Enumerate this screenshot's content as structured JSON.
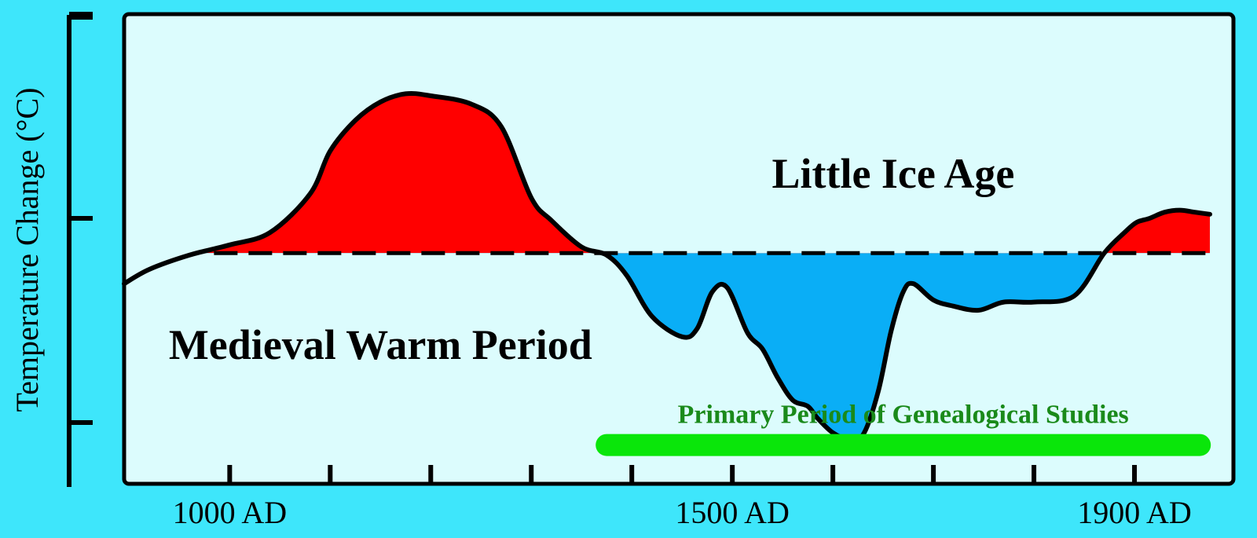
{
  "chart_data": {
    "type": "area",
    "title": "",
    "xlabel": "",
    "ylabel": "Temperature Change (°C)",
    "x_ticks": [
      {
        "value": 1000,
        "label": "1000 AD"
      },
      {
        "value": 1100,
        "label": ""
      },
      {
        "value": 1200,
        "label": ""
      },
      {
        "value": 1300,
        "label": ""
      },
      {
        "value": 1400,
        "label": ""
      },
      {
        "value": 1500,
        "label": "1500 AD"
      },
      {
        "value": 1600,
        "label": ""
      },
      {
        "value": 1700,
        "label": ""
      },
      {
        "value": 1800,
        "label": ""
      },
      {
        "value": 1900,
        "label": "1900 AD"
      }
    ],
    "y_ticks": [
      {
        "value": 1,
        "label": ""
      },
      {
        "value": 0,
        "label": ""
      },
      {
        "value": -1,
        "label": ""
      }
    ],
    "xlim": [
      895,
      1975
    ],
    "ylim": [
      -1.3,
      1.0
    ],
    "baseline": -0.17,
    "grid": false,
    "series": [
      {
        "x": [
          895,
          920,
          960,
          1000,
          1040,
          1080,
          1100,
          1125,
          1150,
          1175,
          1200,
          1240,
          1270,
          1300,
          1320,
          1350,
          1375,
          1395,
          1420,
          1450,
          1465,
          1480,
          1495,
          1515,
          1530,
          1545,
          1560,
          1575,
          1585,
          1600,
          1615,
          1630,
          1645,
          1658,
          1670,
          1680,
          1700,
          1720,
          1745,
          1770,
          1800,
          1840,
          1870,
          1890,
          1902,
          1915,
          1930,
          1945,
          1960,
          1975
        ],
        "y": [
          -0.32,
          -0.25,
          -0.18,
          -0.13,
          -0.07,
          0.12,
          0.33,
          0.48,
          0.57,
          0.61,
          0.6,
          0.56,
          0.45,
          0.1,
          -0.01,
          -0.14,
          -0.18,
          -0.28,
          -0.48,
          -0.58,
          -0.54,
          -0.36,
          -0.34,
          -0.56,
          -0.64,
          -0.78,
          -0.89,
          -0.92,
          -0.98,
          -1.05,
          -1.08,
          -1.06,
          -0.85,
          -0.55,
          -0.36,
          -0.32,
          -0.4,
          -0.43,
          -0.45,
          -0.41,
          -0.41,
          -0.38,
          -0.17,
          -0.07,
          -0.02,
          0.0,
          0.03,
          0.04,
          0.03,
          0.02
        ]
      }
    ],
    "fill_above_color": "#ff0000",
    "fill_below_color": "#0aaef6",
    "annotations": [
      {
        "text": "Little Ice Age",
        "x": 1660,
        "y": 0.22
      },
      {
        "text": "Medieval Warm Period",
        "x": 1150,
        "y": -0.62
      }
    ],
    "highlight_span": {
      "label": "Primary Period of Genealogical Studies",
      "x_start": 1375,
      "x_end": 1965,
      "y": -1.11,
      "color": "#0ae60a"
    },
    "plot_background": "#dcfcfd",
    "page_background": "#3ee6fb"
  }
}
